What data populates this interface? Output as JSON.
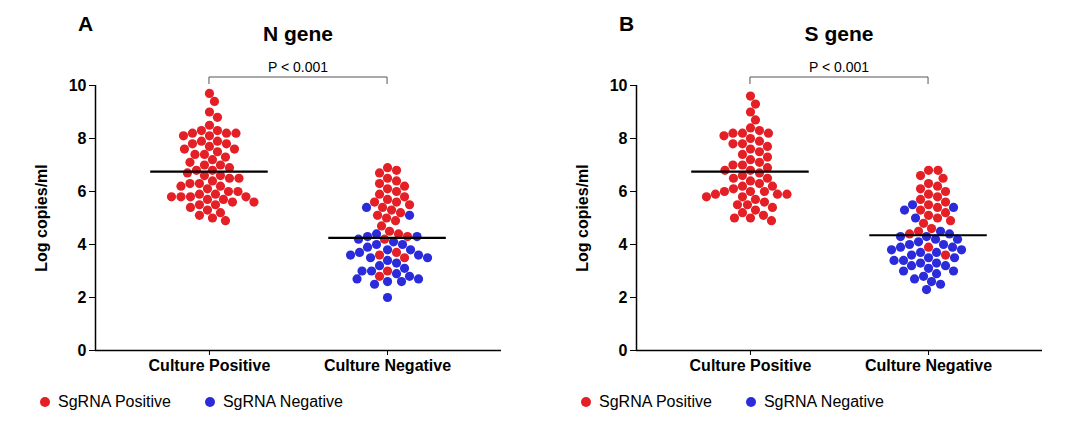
{
  "chart_data": [
    {
      "type": "scatter",
      "panel_label": "A",
      "title": "N gene",
      "categories": [
        "Culture Positive",
        "Culture Negative"
      ],
      "ylabel": "Log copies/ml",
      "ylim": [
        0,
        10
      ],
      "yticks": [
        0,
        2,
        4,
        6,
        8,
        10
      ],
      "legend": "bottom",
      "marker": "circle",
      "series": [
        {
          "name": "SgRNA Positive",
          "color": "#e41f26",
          "values": [
            [
              9.7,
              9.4,
              9.0,
              8.8,
              8.5,
              8.3,
              8.3,
              8.2,
              8.2,
              8.2,
              8.1,
              8.1,
              7.9,
              7.9,
              7.8,
              7.8,
              7.7,
              7.6,
              7.6,
              7.5,
              7.4,
              7.4,
              7.3,
              7.2,
              7.1,
              7.0,
              7.0,
              6.9,
              6.8,
              6.8,
              6.7,
              6.6,
              6.6,
              6.5,
              6.5,
              6.4,
              6.3,
              6.3,
              6.2,
              6.2,
              6.1,
              6.0,
              6.0,
              5.9,
              5.9,
              5.8,
              5.8,
              5.8,
              5.8,
              5.7,
              5.7,
              5.6,
              5.6,
              5.5,
              5.5,
              5.4,
              5.3,
              5.2,
              5.1,
              5.0,
              4.9
            ],
            [
              6.9,
              6.8,
              6.7,
              6.5,
              6.4,
              6.3,
              6.2,
              6.1,
              6.0,
              5.9,
              5.8,
              5.7,
              5.6,
              5.6,
              5.5,
              5.4,
              5.3,
              5.2,
              5.1,
              5.0,
              4.9,
              4.7,
              4.5,
              4.4,
              4.3,
              4.2,
              3.7,
              3.6,
              3.5,
              3.0,
              2.8
            ]
          ]
        },
        {
          "name": "SgRNA Negative",
          "color": "#2b2bdc",
          "values": [
            [],
            [
              5.4,
              5.1,
              4.4,
              4.3,
              4.3,
              4.2,
              4.1,
              4.0,
              4.0,
              3.9,
              3.8,
              3.8,
              3.7,
              3.6,
              3.6,
              3.5,
              3.5,
              3.4,
              3.3,
              3.2,
              3.1,
              3.0,
              3.0,
              2.9,
              2.8,
              2.7,
              2.7,
              2.6,
              2.6,
              2.5,
              2.0
            ]
          ]
        }
      ],
      "means": [
        6.75,
        4.25
      ],
      "annotations": [
        {
          "text": "P < 0.001",
          "from": "Culture Positive",
          "to": "Culture Negative"
        }
      ]
    },
    {
      "type": "scatter",
      "panel_label": "B",
      "title": "S gene",
      "categories": [
        "Culture Positive",
        "Culture Negative"
      ],
      "ylabel": "Log copies/ml",
      "ylim": [
        0,
        10
      ],
      "yticks": [
        0,
        2,
        4,
        6,
        8,
        10
      ],
      "legend": "bottom",
      "marker": "circle",
      "series": [
        {
          "name": "SgRNA Positive",
          "color": "#e41f26",
          "values": [
            [
              9.6,
              9.3,
              9.0,
              8.7,
              8.4,
              8.3,
              8.2,
              8.2,
              8.2,
              8.1,
              8.0,
              7.9,
              7.8,
              7.8,
              7.7,
              7.6,
              7.5,
              7.4,
              7.3,
              7.2,
              7.1,
              7.0,
              7.0,
              6.9,
              6.8,
              6.8,
              6.7,
              6.6,
              6.5,
              6.5,
              6.4,
              6.3,
              6.2,
              6.2,
              6.1,
              6.0,
              6.0,
              6.0,
              5.9,
              5.9,
              5.9,
              5.8,
              5.8,
              5.7,
              5.6,
              5.5,
              5.5,
              5.4,
              5.3,
              5.2,
              5.1,
              5.0,
              5.0,
              4.9
            ],
            [
              6.8,
              6.8,
              6.6,
              6.5,
              6.3,
              6.2,
              6.1,
              6.0,
              5.9,
              5.8,
              5.7,
              5.6,
              5.5,
              5.4,
              5.3,
              5.2,
              5.1,
              5.0,
              4.9,
              4.8,
              4.6,
              4.5,
              4.4,
              3.9,
              3.6
            ]
          ]
        },
        {
          "name": "SgRNA Negative",
          "color": "#2b2bdc",
          "values": [
            [],
            [
              5.5,
              5.4,
              5.3,
              5.0,
              4.5,
              4.4,
              4.3,
              4.3,
              4.2,
              4.2,
              4.1,
              4.0,
              4.0,
              3.9,
              3.9,
              3.8,
              3.8,
              3.7,
              3.7,
              3.6,
              3.5,
              3.5,
              3.4,
              3.4,
              3.3,
              3.3,
              3.2,
              3.2,
              3.1,
              3.0,
              3.0,
              2.9,
              2.8,
              2.7,
              2.6,
              2.5,
              2.3
            ]
          ]
        }
      ],
      "means": [
        6.75,
        4.35
      ],
      "annotations": [
        {
          "text": "P < 0.001",
          "from": "Culture Positive",
          "to": "Culture Negative"
        }
      ]
    }
  ]
}
